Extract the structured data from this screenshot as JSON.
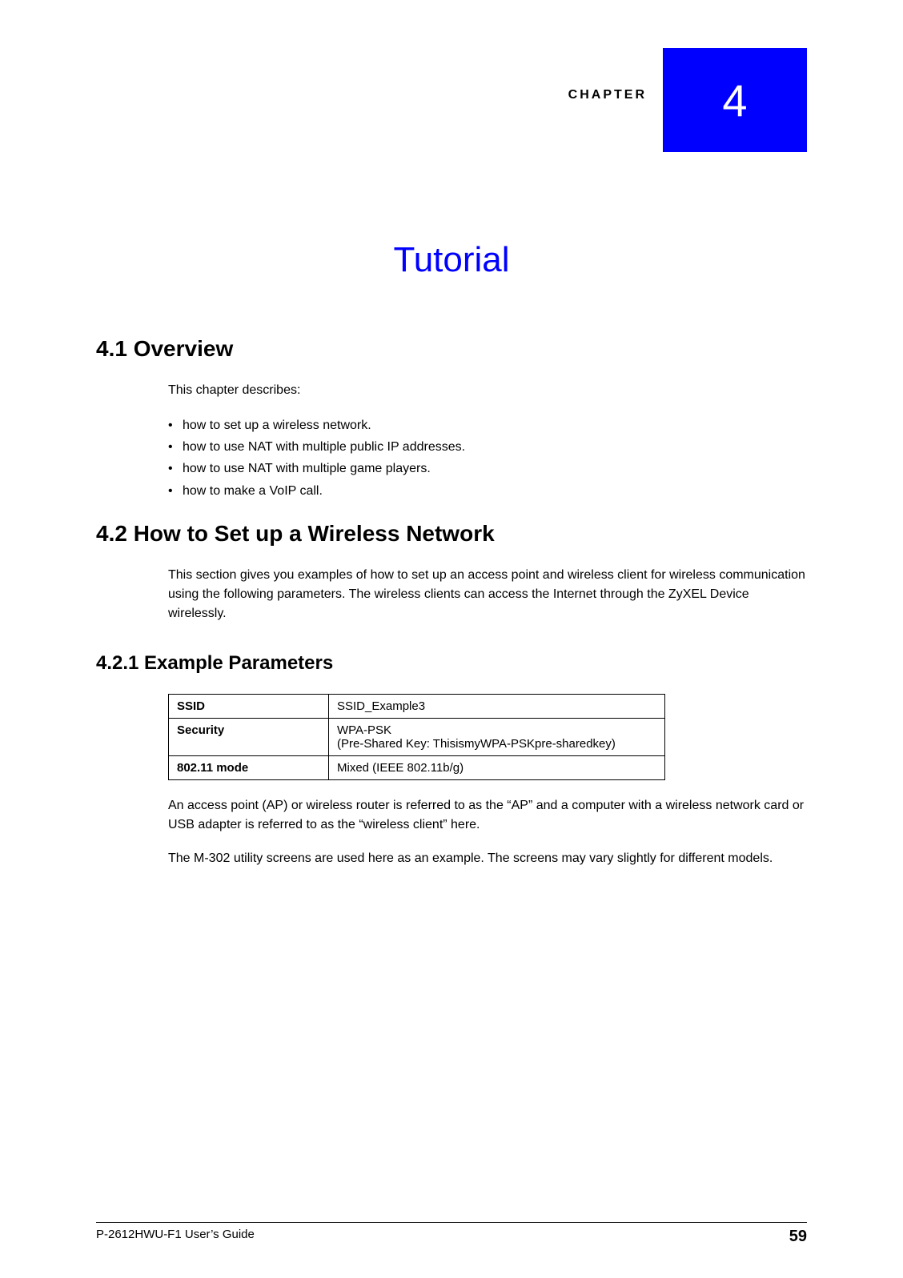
{
  "chapter": {
    "label": "CHAPTER",
    "number": "4",
    "title": "Tutorial",
    "tab_bg": "#0000ff",
    "tab_fg": "#ffffff",
    "title_color": "#0000ff"
  },
  "sections": {
    "s41": {
      "heading": "4.1  Overview",
      "intro": "This chapter describes:",
      "bullets": [
        "how to set up a wireless network.",
        "how to use NAT with multiple public IP addresses.",
        "how to use NAT with multiple game players.",
        "how to make a VoIP call."
      ]
    },
    "s42": {
      "heading": "4.2  How to Set up a Wireless Network",
      "para": "This section gives you examples of how to set up an access point and wireless client for wireless communication using the following parameters. The wireless clients can access the Internet through the ZyXEL Device wirelessly."
    },
    "s421": {
      "heading": "4.2.1  Example Parameters",
      "table": {
        "rows": [
          {
            "key": "SSID",
            "val": "SSID_Example3"
          },
          {
            "key": "Security",
            "val": "WPA-PSK\n(Pre-Shared Key: ThisismyWPA-PSKpre-sharedkey)"
          },
          {
            "key": "802.11 mode",
            "val": "Mixed (IEEE 802.11b/g)"
          }
        ]
      },
      "para1": "An access point (AP) or wireless router is referred to as the “AP” and a computer with a wireless network card or USB adapter is referred to as the “wireless client” here.",
      "para2": "The M-302 utility screens are used here as an example. The screens may vary slightly for different models."
    }
  },
  "footer": {
    "guide": "P-2612HWU-F1 User’s Guide",
    "page": "59"
  }
}
